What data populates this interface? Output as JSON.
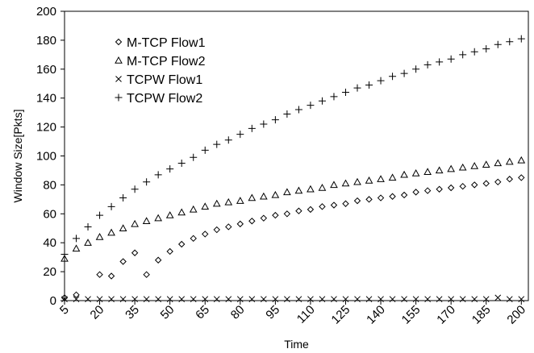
{
  "chart_data": {
    "type": "scatter",
    "xlabel": "Time",
    "ylabel": "Window Size[Pkts]",
    "ylim": [
      0,
      200
    ],
    "xlim": [
      5,
      203
    ],
    "x_ticks": [
      "5",
      "20",
      "35",
      "50",
      "65",
      "80",
      "95",
      "110",
      "125",
      "140",
      "155",
      "170",
      "185",
      "200"
    ],
    "y_ticks": [
      "0",
      "20",
      "40",
      "60",
      "80",
      "100",
      "120",
      "140",
      "160",
      "180",
      "200"
    ],
    "grid": false,
    "legend_placement": "top-left",
    "x": [
      5,
      10,
      15,
      20,
      25,
      30,
      35,
      40,
      45,
      50,
      55,
      60,
      65,
      70,
      75,
      80,
      85,
      90,
      95,
      100,
      105,
      110,
      115,
      120,
      125,
      130,
      135,
      140,
      145,
      150,
      155,
      160,
      165,
      170,
      175,
      180,
      185,
      190,
      195,
      200
    ],
    "series": [
      {
        "name": "M-TCP Flow1",
        "marker": "diamond",
        "x": [
          5,
          10,
          20,
          25,
          30,
          35,
          40,
          45,
          50,
          55,
          60,
          65,
          70,
          75,
          80,
          85,
          90,
          95,
          100,
          105,
          110,
          115,
          120,
          125,
          130,
          135,
          140,
          145,
          150,
          155,
          160,
          165,
          170,
          175,
          180,
          185,
          190,
          195,
          200
        ],
        "values": [
          2,
          4,
          18,
          17,
          27,
          33,
          18,
          28,
          34,
          39,
          43,
          46,
          49,
          51,
          53,
          55,
          57,
          59,
          60,
          62,
          63,
          65,
          66,
          67,
          69,
          70,
          71,
          72,
          73,
          75,
          76,
          77,
          78,
          79,
          80,
          81,
          82,
          84,
          85
        ]
      },
      {
        "name": "M-TCP Flow2",
        "marker": "triangle",
        "x": [
          5,
          10,
          15,
          20,
          25,
          30,
          35,
          40,
          45,
          50,
          55,
          60,
          65,
          70,
          75,
          80,
          85,
          90,
          95,
          100,
          105,
          110,
          115,
          120,
          125,
          130,
          135,
          140,
          145,
          150,
          155,
          160,
          165,
          170,
          175,
          180,
          185,
          190,
          195,
          200
        ],
        "values": [
          29,
          36,
          40,
          44,
          47,
          50,
          53,
          55,
          57,
          59,
          61,
          63,
          65,
          67,
          68,
          69,
          71,
          72,
          73,
          75,
          76,
          77,
          78,
          80,
          81,
          82,
          83,
          84,
          85,
          87,
          88,
          89,
          90,
          91,
          92,
          93,
          94,
          95,
          96,
          97
        ]
      },
      {
        "name": "TCPW Flow1",
        "marker": "x",
        "x": [
          5,
          10,
          15,
          20,
          25,
          30,
          35,
          40,
          45,
          50,
          55,
          60,
          65,
          70,
          75,
          80,
          85,
          90,
          95,
          100,
          105,
          110,
          115,
          120,
          125,
          130,
          135,
          140,
          145,
          150,
          155,
          160,
          165,
          170,
          175,
          180,
          185,
          190,
          195,
          200
        ],
        "values": [
          1,
          1,
          1,
          1,
          1,
          1,
          1,
          1,
          1,
          1,
          1,
          1,
          1,
          1,
          1,
          1,
          1,
          1,
          1,
          1,
          1,
          1,
          1,
          1,
          1,
          1,
          1,
          1,
          1,
          1,
          1,
          1,
          1,
          1,
          1,
          1,
          1,
          2,
          1,
          1
        ]
      },
      {
        "name": "TCPW Flow2",
        "marker": "plus",
        "x": [
          5,
          10,
          15,
          20,
          25,
          30,
          35,
          40,
          45,
          50,
          55,
          60,
          65,
          70,
          75,
          80,
          85,
          90,
          95,
          100,
          105,
          110,
          115,
          120,
          125,
          130,
          135,
          140,
          145,
          150,
          155,
          160,
          165,
          170,
          175,
          180,
          185,
          190,
          195,
          200
        ],
        "values": [
          32,
          43,
          51,
          59,
          65,
          71,
          77,
          82,
          87,
          91,
          95,
          99,
          104,
          108,
          111,
          115,
          119,
          122,
          125,
          129,
          132,
          135,
          138,
          141,
          144,
          147,
          149,
          152,
          155,
          157,
          160,
          163,
          165,
          167,
          170,
          172,
          174,
          177,
          179,
          181
        ]
      }
    ]
  }
}
